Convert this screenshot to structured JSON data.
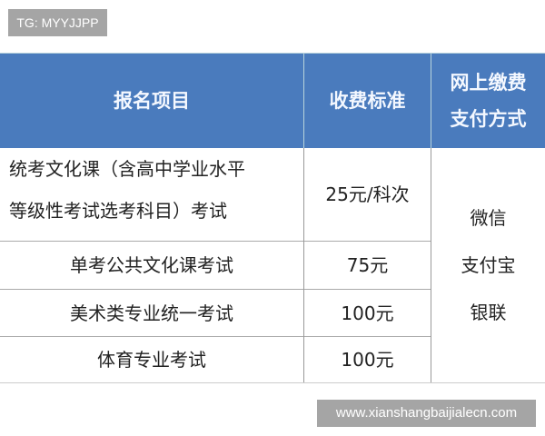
{
  "tag": "TG: MYYJJPP",
  "watermark": "www.xianshangbaijialecn.com",
  "header": {
    "item": "报名项目",
    "fee": "收费标准",
    "pay_line1": "网上缴费",
    "pay_line2": "支付方式"
  },
  "rows": [
    {
      "item_line1": "统考文化课（含高中学业水平",
      "item_line2": "等级性考试选考科目）考试",
      "fee": "25元/科次"
    },
    {
      "item": "单考公共文化课考试",
      "fee": "75元"
    },
    {
      "item": "美术类专业统一考试",
      "fee": "100元"
    },
    {
      "item": "体育专业考试",
      "fee": "100元"
    }
  ],
  "payment_methods": [
    "微信",
    "支付宝",
    "银联"
  ],
  "colors": {
    "header_bg": "#4a7bbd"
  }
}
